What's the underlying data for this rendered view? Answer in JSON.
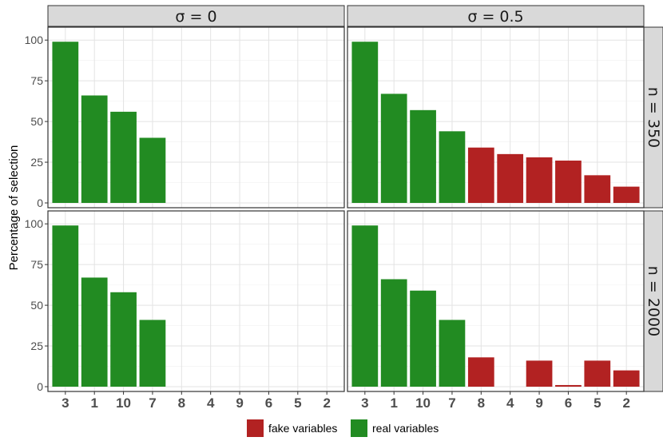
{
  "chart_data": {
    "type": "bar",
    "ylabel": "Percentage of selection",
    "ylim": [
      0,
      105
    ],
    "yticks": [
      0,
      25,
      50,
      75,
      100
    ],
    "categories": [
      "3",
      "1",
      "10",
      "7",
      "8",
      "4",
      "9",
      "6",
      "5",
      "2"
    ],
    "col_strips": [
      "σ = 0",
      "σ = 0.5"
    ],
    "row_strips": [
      "n = 350",
      "n = 2000"
    ],
    "legend": [
      {
        "label": "fake variables",
        "color": "#b22222"
      },
      {
        "label": "real variables",
        "color": "#228b22"
      }
    ],
    "grid": true,
    "legend_position": "bottom",
    "panels": [
      {
        "row": 0,
        "col": 0,
        "values": [
          99,
          66,
          56,
          40,
          0,
          0,
          0,
          0,
          0,
          0
        ],
        "kinds": [
          "real",
          "real",
          "real",
          "real",
          "fake",
          "fake",
          "fake",
          "fake",
          "fake",
          "fake"
        ]
      },
      {
        "row": 0,
        "col": 1,
        "values": [
          99,
          67,
          57,
          44,
          34,
          30,
          28,
          26,
          17,
          10
        ],
        "kinds": [
          "real",
          "real",
          "real",
          "real",
          "fake",
          "fake",
          "fake",
          "fake",
          "fake",
          "fake"
        ]
      },
      {
        "row": 1,
        "col": 0,
        "values": [
          99,
          67,
          58,
          41,
          0,
          0,
          0,
          0,
          0,
          0
        ],
        "kinds": [
          "real",
          "real",
          "real",
          "real",
          "fake",
          "fake",
          "fake",
          "fake",
          "fake",
          "fake"
        ]
      },
      {
        "row": 1,
        "col": 1,
        "values": [
          99,
          66,
          59,
          41,
          18,
          0,
          16,
          1,
          16,
          10
        ],
        "kinds": [
          "real",
          "real",
          "real",
          "real",
          "fake",
          "fake",
          "fake",
          "fake",
          "fake",
          "fake"
        ]
      }
    ]
  }
}
